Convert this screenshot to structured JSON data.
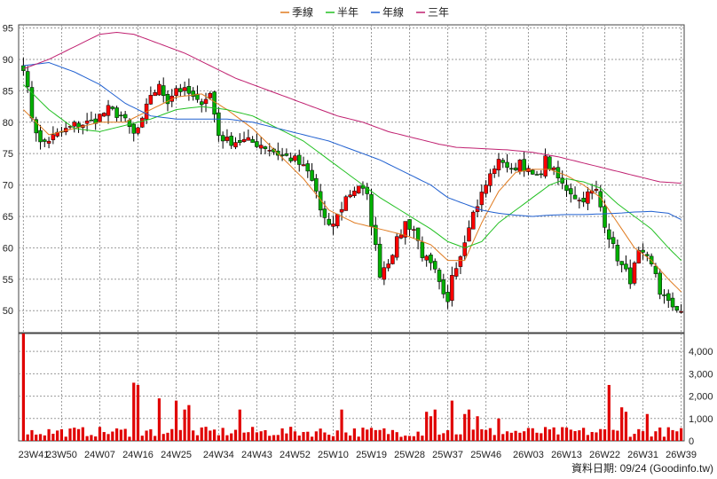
{
  "chart_data": {
    "type": "candlestick",
    "legend": [
      {
        "name": "季線",
        "color": "#e07b20"
      },
      {
        "name": "半年",
        "color": "#22c022"
      },
      {
        "name": "年線",
        "color": "#2060d0"
      },
      {
        "name": "三年",
        "color": "#c02070"
      }
    ],
    "price_axis": {
      "ticks": [
        50,
        55,
        60,
        65,
        70,
        75,
        80,
        85,
        90,
        95
      ],
      "range": [
        46.5,
        95.5
      ]
    },
    "volume_axis": {
      "ticks": [
        "0",
        "1,000",
        "2,000",
        "3,000",
        "4,000"
      ],
      "range": [
        0,
        4800
      ]
    },
    "x_labels": [
      "23W41",
      "23W50",
      "24W07",
      "24W16",
      "24W25",
      "24W34",
      "24W43",
      "24W52",
      "25W10",
      "25W19",
      "25W28",
      "25W37",
      "25W46",
      "26W03",
      "26W13",
      "26W22",
      "26W31",
      "26W39"
    ],
    "week_count": 156,
    "price_anchors": [
      [
        0,
        89
      ],
      [
        2,
        81
      ],
      [
        4,
        76.5
      ],
      [
        8,
        78
      ],
      [
        12,
        79.5
      ],
      [
        16,
        80
      ],
      [
        20,
        82
      ],
      [
        23,
        81
      ],
      [
        26,
        78
      ],
      [
        28,
        80
      ],
      [
        30,
        84.5
      ],
      [
        32,
        85.5
      ],
      [
        34,
        83.5
      ],
      [
        36,
        85.5
      ],
      [
        39,
        84.5
      ],
      [
        41,
        83
      ],
      [
        44,
        84.5
      ],
      [
        46,
        78
      ],
      [
        48,
        77
      ],
      [
        52,
        77
      ],
      [
        56,
        76.5
      ],
      [
        60,
        75
      ],
      [
        64,
        74
      ],
      [
        67,
        72
      ],
      [
        69,
        69
      ],
      [
        70,
        66
      ],
      [
        72,
        63
      ],
      [
        74,
        65
      ],
      [
        76,
        68
      ],
      [
        79,
        70
      ],
      [
        81,
        68
      ],
      [
        83,
        60
      ],
      [
        84,
        56
      ],
      [
        86,
        58
      ],
      [
        88,
        61
      ],
      [
        90,
        64
      ],
      [
        92,
        63
      ],
      [
        94,
        59
      ],
      [
        97,
        56
      ],
      [
        99,
        52
      ],
      [
        100,
        51
      ],
      [
        101,
        56
      ],
      [
        103,
        59
      ],
      [
        105,
        64
      ],
      [
        107,
        67
      ],
      [
        109,
        70
      ],
      [
        111,
        73
      ],
      [
        113,
        74
      ],
      [
        115,
        72
      ],
      [
        117,
        74
      ],
      [
        119,
        72
      ],
      [
        121,
        71
      ],
      [
        123,
        74
      ],
      [
        125,
        72
      ],
      [
        127,
        70
      ],
      [
        129,
        69
      ],
      [
        131,
        67.5
      ],
      [
        133,
        68.5
      ],
      [
        135,
        69
      ],
      [
        137,
        64
      ],
      [
        139,
        60
      ],
      [
        141,
        57
      ],
      [
        143,
        55
      ],
      [
        145,
        59
      ],
      [
        147,
        58
      ],
      [
        149,
        56
      ],
      [
        150,
        53
      ],
      [
        152,
        51
      ],
      [
        154,
        50.5
      ],
      [
        155,
        50
      ]
    ],
    "ma_series": {
      "季線": [
        [
          0,
          82
        ],
        [
          6,
          78
        ],
        [
          12,
          79
        ],
        [
          18,
          80
        ],
        [
          24,
          80
        ],
        [
          30,
          82
        ],
        [
          36,
          84
        ],
        [
          42,
          84.5
        ],
        [
          48,
          82
        ],
        [
          54,
          79
        ],
        [
          60,
          75
        ],
        [
          66,
          71
        ],
        [
          72,
          66
        ],
        [
          78,
          64
        ],
        [
          84,
          63
        ],
        [
          90,
          62
        ],
        [
          96,
          60.5
        ],
        [
          100,
          58
        ],
        [
          104,
          58
        ],
        [
          108,
          64
        ],
        [
          112,
          69
        ],
        [
          116,
          72
        ],
        [
          120,
          72.5
        ],
        [
          124,
          72.5
        ],
        [
          128,
          71.5
        ],
        [
          132,
          70
        ],
        [
          136,
          68
        ],
        [
          140,
          64
        ],
        [
          144,
          60
        ],
        [
          148,
          58
        ],
        [
          152,
          55
        ],
        [
          155,
          53
        ]
      ],
      "半年": [
        [
          0,
          86
        ],
        [
          6,
          82
        ],
        [
          12,
          79
        ],
        [
          18,
          78.5
        ],
        [
          24,
          79.5
        ],
        [
          30,
          80.5
        ],
        [
          36,
          82
        ],
        [
          42,
          82.5
        ],
        [
          48,
          82
        ],
        [
          54,
          81
        ],
        [
          60,
          79
        ],
        [
          66,
          77
        ],
        [
          72,
          74
        ],
        [
          78,
          71
        ],
        [
          84,
          68
        ],
        [
          90,
          65.5
        ],
        [
          96,
          63
        ],
        [
          100,
          61
        ],
        [
          104,
          60
        ],
        [
          108,
          61
        ],
        [
          112,
          64
        ],
        [
          116,
          66
        ],
        [
          120,
          68
        ],
        [
          124,
          70
        ],
        [
          128,
          71
        ],
        [
          132,
          70.5
        ],
        [
          136,
          69.5
        ],
        [
          140,
          67
        ],
        [
          144,
          65
        ],
        [
          148,
          63
        ],
        [
          152,
          60
        ],
        [
          155,
          58
        ]
      ],
      "年線": [
        [
          0,
          89
        ],
        [
          6,
          89.5
        ],
        [
          12,
          88
        ],
        [
          18,
          86
        ],
        [
          24,
          83
        ],
        [
          30,
          81
        ],
        [
          36,
          80.5
        ],
        [
          42,
          80.5
        ],
        [
          48,
          80.5
        ],
        [
          54,
          80
        ],
        [
          60,
          79
        ],
        [
          66,
          78
        ],
        [
          72,
          77
        ],
        [
          78,
          75.5
        ],
        [
          84,
          74
        ],
        [
          90,
          72
        ],
        [
          96,
          70
        ],
        [
          100,
          68
        ],
        [
          104,
          67
        ],
        [
          108,
          66
        ],
        [
          112,
          65.5
        ],
        [
          116,
          65.2
        ],
        [
          120,
          65
        ],
        [
          124,
          65.2
        ],
        [
          128,
          65.3
        ],
        [
          132,
          65.3
        ],
        [
          136,
          65.4
        ],
        [
          140,
          65.5
        ],
        [
          144,
          65.7
        ],
        [
          148,
          65.8
        ],
        [
          152,
          65.5
        ],
        [
          155,
          64.5
        ]
      ],
      "三年": [
        [
          0,
          88.5
        ],
        [
          6,
          90
        ],
        [
          12,
          92
        ],
        [
          18,
          94
        ],
        [
          22,
          94.3
        ],
        [
          26,
          94
        ],
        [
          32,
          92.5
        ],
        [
          38,
          91
        ],
        [
          44,
          89
        ],
        [
          50,
          87
        ],
        [
          56,
          85.5
        ],
        [
          62,
          84
        ],
        [
          68,
          82.5
        ],
        [
          74,
          81
        ],
        [
          80,
          80
        ],
        [
          86,
          78.5
        ],
        [
          92,
          77.5
        ],
        [
          98,
          76.5
        ],
        [
          102,
          76
        ],
        [
          108,
          75.8
        ],
        [
          114,
          75.6
        ],
        [
          120,
          75.2
        ],
        [
          126,
          74.5
        ],
        [
          132,
          73.5
        ],
        [
          138,
          72.5
        ],
        [
          144,
          71.5
        ],
        [
          150,
          70.5
        ],
        [
          155,
          70.3
        ]
      ]
    },
    "volume_spikes": [
      [
        0,
        4800
      ],
      [
        26,
        2600
      ],
      [
        27,
        2500
      ],
      [
        32,
        1900
      ],
      [
        36,
        1800
      ],
      [
        38,
        1400
      ],
      [
        39,
        1600
      ],
      [
        51,
        1400
      ],
      [
        75,
        1400
      ],
      [
        95,
        1300
      ],
      [
        96,
        1100
      ],
      [
        97,
        1400
      ],
      [
        101,
        1800
      ],
      [
        104,
        1200
      ],
      [
        105,
        1400
      ],
      [
        107,
        1100
      ],
      [
        112,
        1000
      ],
      [
        138,
        2500
      ],
      [
        141,
        1500
      ],
      [
        142,
        1300
      ],
      [
        147,
        1200
      ]
    ],
    "credit": "資料日期: 09/24  (Goodinfo.tw)"
  }
}
